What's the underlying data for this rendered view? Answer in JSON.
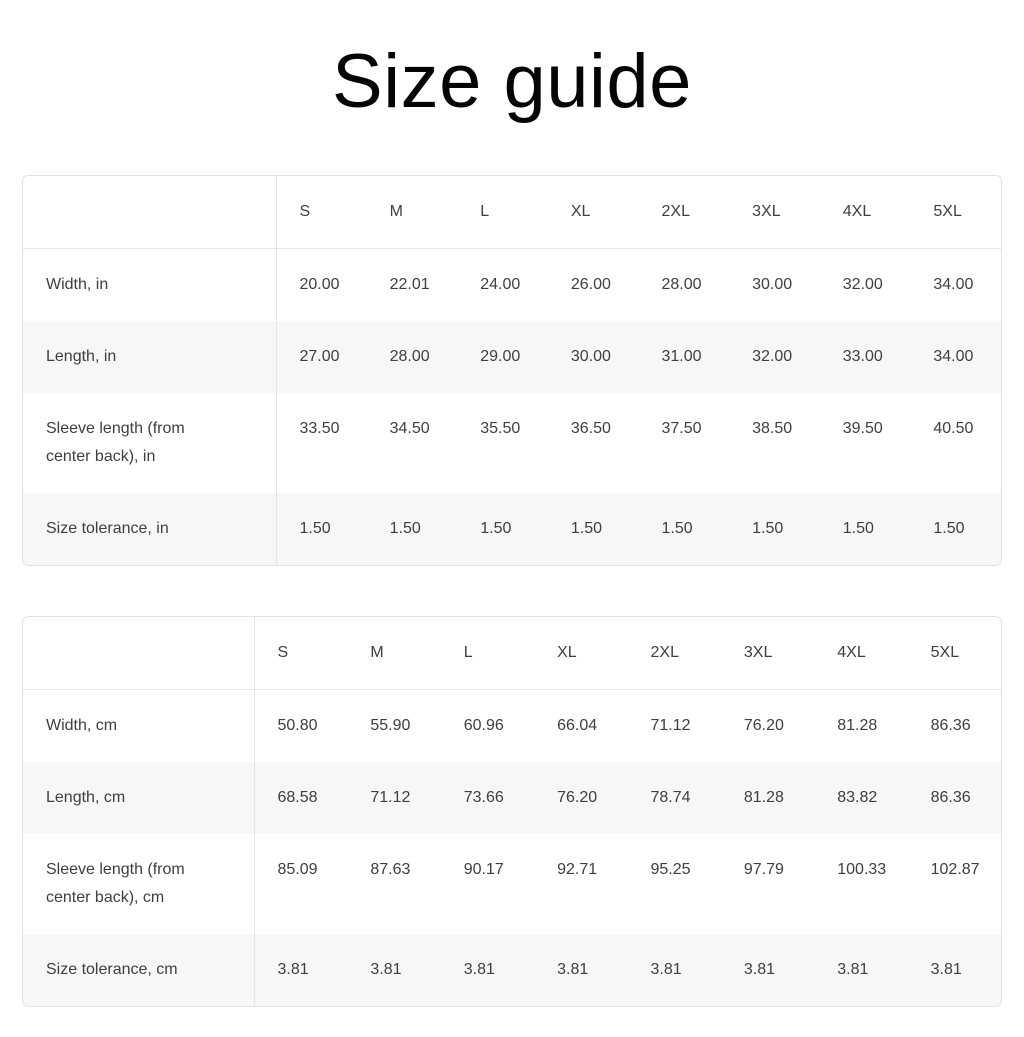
{
  "title": "Size guide",
  "colors": {
    "background": "#ffffff",
    "border": "#e2e2e2",
    "inner_line": "#e6e6e6",
    "zebra_row": "#f7f7f8",
    "text": "#3c4043",
    "title_text": "#050505"
  },
  "tables": [
    {
      "unit": "inches",
      "header": [
        "S",
        "M",
        "L",
        "XL",
        "2XL",
        "3XL",
        "4XL",
        "5XL"
      ],
      "rows": [
        {
          "label": "Width, in",
          "values": [
            "20.00",
            "22.01",
            "24.00",
            "26.00",
            "28.00",
            "30.00",
            "32.00",
            "34.00"
          ]
        },
        {
          "label": "Length, in",
          "values": [
            "27.00",
            "28.00",
            "29.00",
            "30.00",
            "31.00",
            "32.00",
            "33.00",
            "34.00"
          ]
        },
        {
          "label": "Sleeve length (from center back), in",
          "values": [
            "33.50",
            "34.50",
            "35.50",
            "36.50",
            "37.50",
            "38.50",
            "39.50",
            "40.50"
          ]
        },
        {
          "label": "Size tolerance, in",
          "values": [
            "1.50",
            "1.50",
            "1.50",
            "1.50",
            "1.50",
            "1.50",
            "1.50",
            "1.50"
          ]
        }
      ]
    },
    {
      "unit": "centimeters",
      "header": [
        "S",
        "M",
        "L",
        "XL",
        "2XL",
        "3XL",
        "4XL",
        "5XL"
      ],
      "rows": [
        {
          "label": "Width, cm",
          "values": [
            "50.80",
            "55.90",
            "60.96",
            "66.04",
            "71.12",
            "76.20",
            "81.28",
            "86.36"
          ]
        },
        {
          "label": "Length, cm",
          "values": [
            "68.58",
            "71.12",
            "73.66",
            "76.20",
            "78.74",
            "81.28",
            "83.82",
            "86.36"
          ]
        },
        {
          "label": "Sleeve length (from center back), cm",
          "values": [
            "85.09",
            "87.63",
            "90.17",
            "92.71",
            "95.25",
            "97.79",
            "100.33",
            "102.87"
          ]
        },
        {
          "label": "Size tolerance, cm",
          "values": [
            "3.81",
            "3.81",
            "3.81",
            "3.81",
            "3.81",
            "3.81",
            "3.81",
            "3.81"
          ]
        }
      ]
    }
  ]
}
